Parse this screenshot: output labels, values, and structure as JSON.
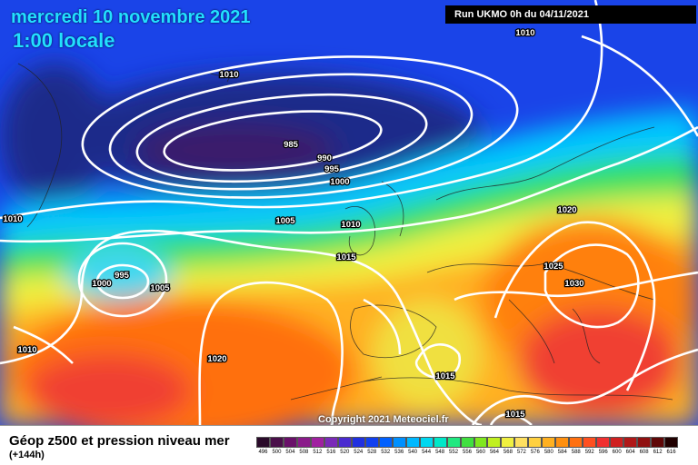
{
  "header": {
    "date": "mercredi 10 novembre 2021",
    "time": "1:00 locale",
    "run": "Run UKMO 0h du 04/11/2021"
  },
  "copyright": "Copyright 2021 Meteociel.fr",
  "legend": {
    "title": "Géop z500 et pression niveau mer",
    "subtitle": "(+144h)",
    "scale": [
      {
        "label": "496",
        "color": "#2a0a2a"
      },
      {
        "label": "500",
        "color": "#4a0f4a"
      },
      {
        "label": "504",
        "color": "#6a106a"
      },
      {
        "label": "508",
        "color": "#8a1a8a"
      },
      {
        "label": "512",
        "color": "#a020a0"
      },
      {
        "label": "516",
        "color": "#7a2ab8"
      },
      {
        "label": "520",
        "color": "#4a2ad0"
      },
      {
        "label": "524",
        "color": "#2030e0"
      },
      {
        "label": "528",
        "color": "#1040f0"
      },
      {
        "label": "532",
        "color": "#0060ff"
      },
      {
        "label": "536",
        "color": "#0090ff"
      },
      {
        "label": "540",
        "color": "#00b8ff"
      },
      {
        "label": "544",
        "color": "#00d8f0"
      },
      {
        "label": "548",
        "color": "#00e8c8"
      },
      {
        "label": "552",
        "color": "#20e880"
      },
      {
        "label": "556",
        "color": "#40e040"
      },
      {
        "label": "560",
        "color": "#80e820"
      },
      {
        "label": "564",
        "color": "#c0f020"
      },
      {
        "label": "568",
        "color": "#f0f040"
      },
      {
        "label": "572",
        "color": "#ffe060"
      },
      {
        "label": "576",
        "color": "#ffd040"
      },
      {
        "label": "580",
        "color": "#ffb020"
      },
      {
        "label": "584",
        "color": "#ff9010"
      },
      {
        "label": "588",
        "color": "#ff7010"
      },
      {
        "label": "592",
        "color": "#ff5020"
      },
      {
        "label": "596",
        "color": "#f03030"
      },
      {
        "label": "600",
        "color": "#d02020"
      },
      {
        "label": "604",
        "color": "#b01818"
      },
      {
        "label": "608",
        "color": "#901010"
      },
      {
        "label": "612",
        "color": "#600808"
      },
      {
        "label": "616",
        "color": "#200000"
      }
    ]
  },
  "isobars": [
    {
      "id": "l1010-top",
      "text": "1010"
    },
    {
      "id": "l985",
      "text": "985"
    },
    {
      "id": "l990",
      "text": "990"
    },
    {
      "id": "l995",
      "text": "995"
    },
    {
      "id": "l1000",
      "text": "1000"
    },
    {
      "id": "l1010-left",
      "text": "1010"
    },
    {
      "id": "l1005",
      "text": "1005"
    },
    {
      "id": "l1010-mid",
      "text": "1010"
    },
    {
      "id": "l1015-mid",
      "text": "1015"
    },
    {
      "id": "l995-sw",
      "text": "995"
    },
    {
      "id": "l1000-sw",
      "text": "1000"
    },
    {
      "id": "l1005-sw",
      "text": "1005"
    },
    {
      "id": "l1010-lower",
      "text": "1010"
    },
    {
      "id": "l1020-sw",
      "text": "1020"
    },
    {
      "id": "l1010-run",
      "text": "1010"
    },
    {
      "id": "l1020-e",
      "text": "1020"
    },
    {
      "id": "l1025",
      "text": "1025"
    },
    {
      "id": "l1030",
      "text": "1030"
    },
    {
      "id": "l1015-s",
      "text": "1015"
    },
    {
      "id": "l1015-bot",
      "text": "1015"
    }
  ]
}
